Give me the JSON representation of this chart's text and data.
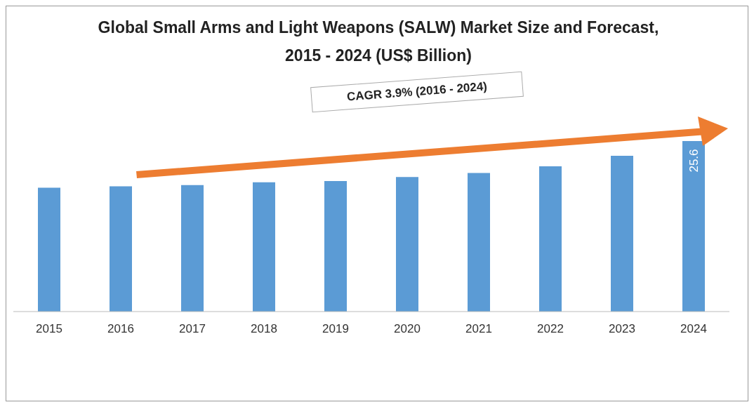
{
  "chart_data": {
    "type": "bar",
    "title": "Global Small Arms and Light Weapons (SALW) Market Size and Forecast, 2015 - 2024 (US$ Billion)",
    "categories": [
      "2015",
      "2016",
      "2017",
      "2018",
      "2019",
      "2020",
      "2021",
      "2022",
      "2023",
      "2024"
    ],
    "values": [
      18.6,
      18.8,
      19.0,
      19.4,
      19.6,
      20.2,
      20.8,
      21.8,
      23.4,
      25.6
    ],
    "value_labels": [
      null,
      null,
      null,
      null,
      null,
      null,
      null,
      null,
      null,
      "25.6"
    ],
    "color": "#5b9bd5",
    "tick_labels": "x",
    "annotations": [
      "CAGR 3.9% (2016 - 2024)"
    ]
  }
}
